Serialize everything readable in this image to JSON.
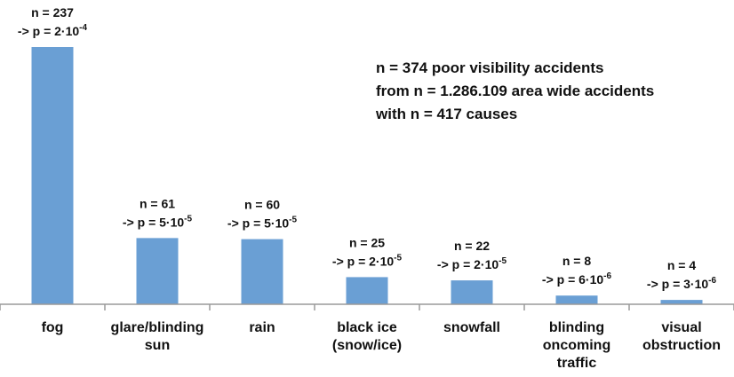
{
  "chart_data": {
    "type": "bar",
    "title": "",
    "xlabel": "",
    "ylabel": "",
    "ylim": [
      0,
      237
    ],
    "grid": false,
    "legend": "none",
    "bar_color": "#6a9fd4",
    "categories": [
      [
        "fog"
      ],
      [
        "glare/blinding",
        "sun"
      ],
      [
        "rain"
      ],
      [
        "black ice",
        "(snow/ice)"
      ],
      [
        "snowfall"
      ],
      [
        "blinding",
        "oncoming",
        "traffic"
      ],
      [
        "visual",
        "obstruction"
      ]
    ],
    "values": [
      237,
      61,
      60,
      25,
      22,
      8,
      4
    ],
    "data_labels": [
      {
        "n": "n = 237",
        "p_prefix": "-> p = 2",
        "p_exp": "-4"
      },
      {
        "n": "n = 61",
        "p_prefix": "-> p = 5",
        "p_exp": "-5"
      },
      {
        "n": "n = 60",
        "p_prefix": "-> p = 5",
        "p_exp": "-5"
      },
      {
        "n": "n = 25",
        "p_prefix": "-> p = 2",
        "p_exp": "-5"
      },
      {
        "n": "n = 22",
        "p_prefix": "-> p = 2",
        "p_exp": "-5"
      },
      {
        "n": "n = 8",
        "p_prefix": "-> p = 6",
        "p_exp": "-6"
      },
      {
        "n": "n = 4",
        "p_prefix": "-> p = 3",
        "p_exp": "-6"
      }
    ],
    "p_base": "10",
    "annotation": [
      "n = 374 poor visibility accidents",
      "from n = 1.286.109 area wide accidents",
      "with n = 417 causes"
    ]
  }
}
